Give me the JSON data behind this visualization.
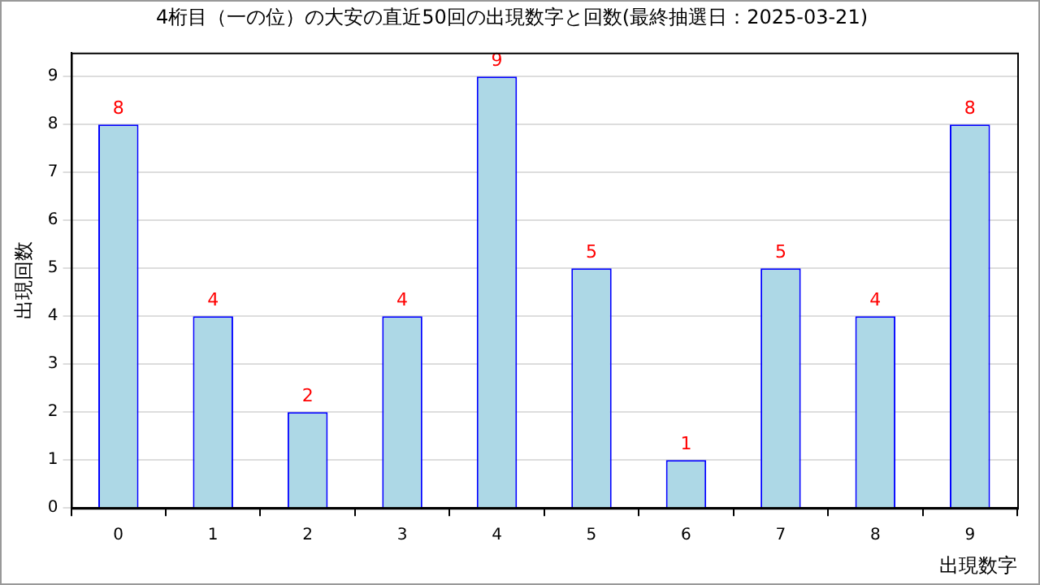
{
  "chart_data": {
    "type": "bar",
    "title": "4桁目（一の位）の大安の直近50回の出現数字と回数(最終抽選日：2025-03-21)",
    "xlabel": "出現数字",
    "ylabel": "出現回数",
    "categories": [
      "0",
      "1",
      "2",
      "3",
      "4",
      "5",
      "6",
      "7",
      "8",
      "9"
    ],
    "series": [
      {
        "color": "#add8e6",
        "values": [
          8,
          4,
          2,
          4,
          9,
          5,
          1,
          5,
          4,
          8
        ]
      }
    ],
    "ylim": [
      0,
      9.5
    ],
    "yticks": [
      0,
      1,
      2,
      3,
      4,
      5,
      6,
      7,
      8,
      9
    ],
    "grid": "y",
    "data_labels": true
  }
}
